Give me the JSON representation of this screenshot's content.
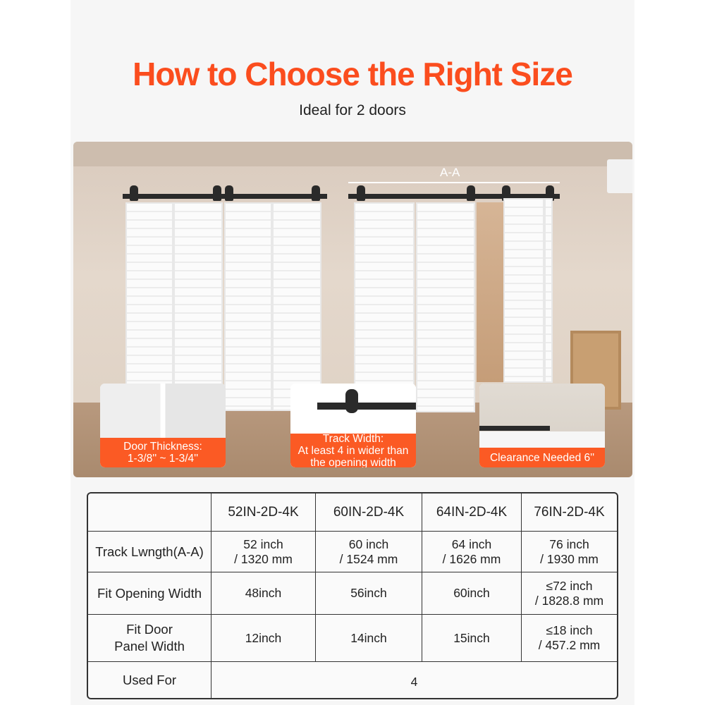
{
  "header": {
    "title": "How to Choose the Right Size",
    "subtitle": "Ideal for 2 doors"
  },
  "photo": {
    "dimension_label": "A-A",
    "callouts": [
      {
        "lines": [
          "Door Thickness:",
          "1-3/8'' ~ 1-3/4''"
        ]
      },
      {
        "lines": [
          "Track Width:",
          "At least 4 in wider than",
          "the opening width"
        ]
      },
      {
        "lines": [
          "Clearance Needed 6''"
        ]
      }
    ]
  },
  "table": {
    "columns": [
      "",
      "52IN-2D-4K",
      "60IN-2D-4K",
      "64IN-2D-4K",
      "76IN-2D-4K"
    ],
    "rows": [
      {
        "label": [
          "Track Lwngth(A-A)"
        ],
        "cells": [
          [
            "52 inch",
            "/ 1320 mm"
          ],
          [
            "60 inch",
            "/ 1524 mm"
          ],
          [
            "64 inch",
            "/ 1626 mm"
          ],
          [
            "76 inch",
            "/ 1930 mm"
          ]
        ]
      },
      {
        "label": [
          "Fit Opening Width"
        ],
        "cells": [
          [
            "48inch"
          ],
          [
            "56inch"
          ],
          [
            "60inch"
          ],
          [
            "≤72 inch",
            "/ 1828.8 mm"
          ]
        ]
      },
      {
        "label": [
          "Fit Door",
          "Panel Width"
        ],
        "cells": [
          [
            "12inch"
          ],
          [
            "14inch"
          ],
          [
            "15inch"
          ],
          [
            "≤18 inch",
            "/ 457.2 mm"
          ]
        ]
      }
    ],
    "used_for": {
      "label": "Used For",
      "value": "4"
    }
  },
  "colors": {
    "accent": "#fb4d1e",
    "callout": "#fb5a24"
  }
}
